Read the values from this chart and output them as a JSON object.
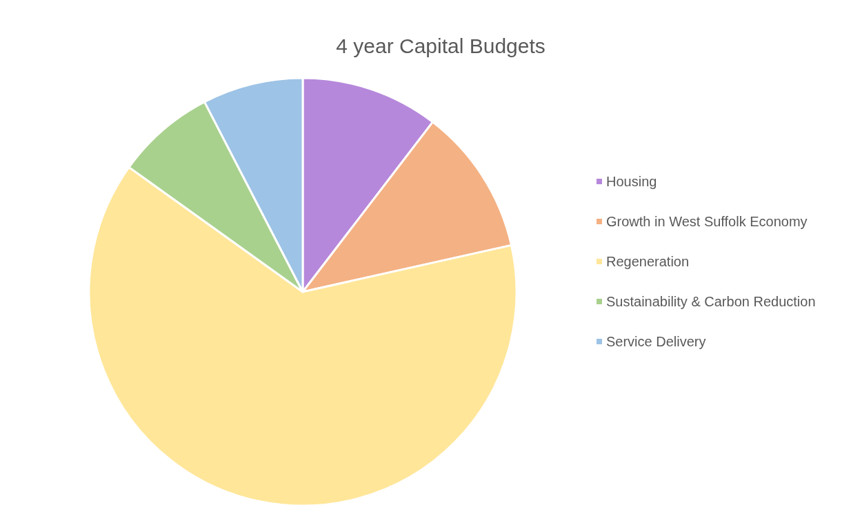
{
  "chart_data": {
    "type": "pie",
    "title": "4 year Capital Budgets",
    "categories": [
      "Housing",
      "Growth in West Suffolk Economy",
      "Regeneration",
      "Sustainability & Carbon Reduction",
      "Service Delivery"
    ],
    "values": [
      10.4,
      11.1,
      63.4,
      7.5,
      7.6
    ],
    "colors": [
      "#b688db",
      "#f4b183",
      "#ffe699",
      "#a9d18e",
      "#9dc3e6"
    ],
    "legend": "right"
  }
}
